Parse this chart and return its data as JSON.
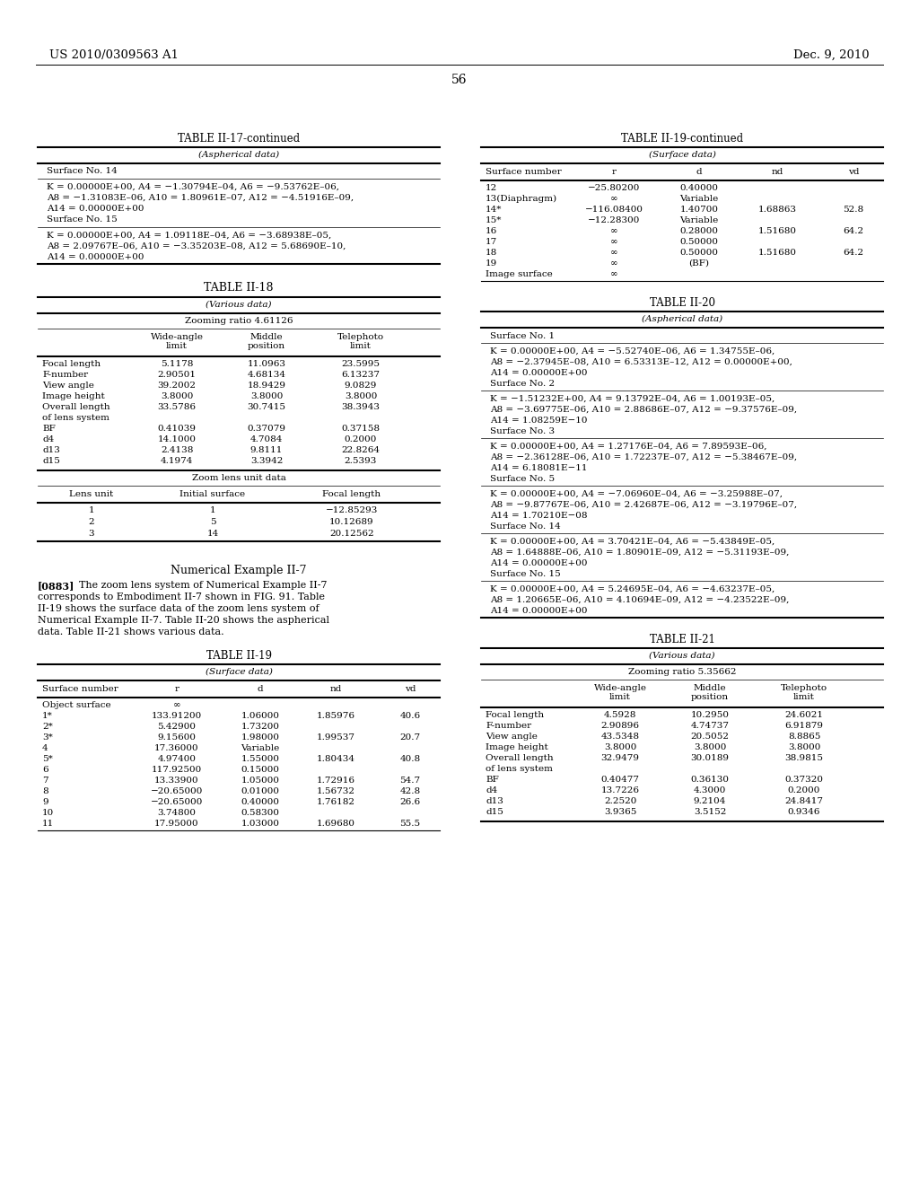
{
  "page_header_left": "US 2010/0309563 A1",
  "page_header_right": "Dec. 9, 2010",
  "page_number": "56",
  "table_ii17_title": "TABLE II-17-continued",
  "table_ii17_subtitle": "(Aspherical data)",
  "table_ii17_surface14": "Surface No. 14",
  "table_ii17_s14_lines": [
    "K = 0.00000E+00, A4 = −1.30794E–04, A6 = −9.53762E–06,",
    "A8 = −1.31083E–06, A10 = 1.80961E–07, A12 = −4.51916E–09,",
    "A14 = 0.00000E+00"
  ],
  "table_ii17_surface15": "Surface No. 15",
  "table_ii17_s15_lines": [
    "K = 0.00000E+00, A4 = 1.09118E–04, A6 = −3.68938E–05,",
    "A8 = 2.09767E–06, A10 = −3.35203E–08, A12 = 5.68690E–10,",
    "A14 = 0.00000E+00"
  ],
  "table_ii18_title": "TABLE II-18",
  "table_ii18_subtitle": "(Various data)",
  "table_ii18_zoom": "Zooming ratio 4.61126",
  "table_ii18_rows": [
    [
      "Focal length",
      "5.1178",
      "11.0963",
      "23.5995"
    ],
    [
      "F-number",
      "2.90501",
      "4.68134",
      "6.13237"
    ],
    [
      "View angle",
      "39.2002",
      "18.9429",
      "9.0829"
    ],
    [
      "Image height",
      "3.8000",
      "3.8000",
      "3.8000"
    ],
    [
      "Overall length",
      "33.5786",
      "30.7415",
      "38.3943"
    ],
    [
      "of lens system",
      "",
      "",
      ""
    ],
    [
      "BF",
      "0.41039",
      "0.37079",
      "0.37158"
    ],
    [
      "d4",
      "14.1000",
      "4.7084",
      "0.2000"
    ],
    [
      "d13",
      "2.4138",
      "9.8111",
      "22.8264"
    ],
    [
      "d15",
      "4.1974",
      "3.3942",
      "2.5393"
    ]
  ],
  "table_ii18_zoom2": "Zoom lens unit data",
  "table_ii18_rows2": [
    [
      "1",
      "1",
      "−12.85293"
    ],
    [
      "2",
      "5",
      "10.12689"
    ],
    [
      "3",
      "14",
      "20.12562"
    ]
  ],
  "numerical_example_title": "Numerical Example II-7",
  "numerical_example_lines": [
    "[0883]  The zoom lens system of Numerical Example II-7",
    "corresponds to Embodiment II-7 shown in FIG. 91. Table",
    "II-19 shows the surface data of the zoom lens system of",
    "Numerical Example II-7. Table II-20 shows the aspherical",
    "data. Table II-21 shows various data."
  ],
  "table_ii19_title": "TABLE II-19",
  "table_ii19_subtitle": "(Surface data)",
  "table_ii19_rows": [
    [
      "Object surface",
      "∞",
      "",
      "",
      ""
    ],
    [
      "1*",
      "133.91200",
      "1.06000",
      "1.85976",
      "40.6"
    ],
    [
      "2*",
      "5.42900",
      "1.73200",
      "",
      ""
    ],
    [
      "3*",
      "9.15600",
      "1.98000",
      "1.99537",
      "20.7"
    ],
    [
      "4",
      "17.36000",
      "Variable",
      "",
      ""
    ],
    [
      "5*",
      "4.97400",
      "1.55000",
      "1.80434",
      "40.8"
    ],
    [
      "6",
      "117.92500",
      "0.15000",
      "",
      ""
    ],
    [
      "7",
      "13.33900",
      "1.05000",
      "1.72916",
      "54.7"
    ],
    [
      "8",
      "−20.65000",
      "0.01000",
      "1.56732",
      "42.8"
    ],
    [
      "9",
      "−20.65000",
      "0.40000",
      "1.76182",
      "26.6"
    ],
    [
      "10",
      "3.74800",
      "0.58300",
      "",
      ""
    ],
    [
      "11",
      "17.95000",
      "1.03000",
      "1.69680",
      "55.5"
    ]
  ],
  "table_ii19c_title": "TABLE II-19-continued",
  "table_ii19c_subtitle": "(Surface data)",
  "table_ii19c_rows": [
    [
      "12",
      "−25.80200",
      "0.40000",
      "",
      ""
    ],
    [
      "13(Diaphragm)",
      "∞",
      "Variable",
      "",
      ""
    ],
    [
      "14*",
      "−116.08400",
      "1.40700",
      "1.68863",
      "52.8"
    ],
    [
      "15*",
      "−12.28300",
      "Variable",
      "",
      ""
    ],
    [
      "16",
      "∞",
      "0.28000",
      "1.51680",
      "64.2"
    ],
    [
      "17",
      "∞",
      "0.50000",
      "",
      ""
    ],
    [
      "18",
      "∞",
      "0.50000",
      "1.51680",
      "64.2"
    ],
    [
      "19",
      "∞",
      "(BF)",
      "",
      ""
    ],
    [
      "Image surface",
      "∞",
      "",
      "",
      ""
    ]
  ],
  "table_ii20_title": "TABLE II-20",
  "table_ii20_subtitle": "(Aspherical data)",
  "table_ii20_sections": [
    {
      "header": "Surface No. 1",
      "lines": [
        "K = 0.00000E+00, A4 = −5.52740E–06, A6 = 1.34755E–06,",
        "A8 = −2.37945E–08, A10 = 6.53313E–12, A12 = 0.00000E+00,",
        "A14 = 0.00000E+00"
      ]
    },
    {
      "header": "Surface No. 2",
      "lines": [
        "K = −1.51232E+00, A4 = 9.13792E–04, A6 = 1.00193E–05,",
        "A8 = −3.69775E–06, A10 = 2.88686E–07, A12 = −9.37576E–09,",
        "A14 = 1.08259E−10"
      ]
    },
    {
      "header": "Surface No. 3",
      "lines": [
        "K = 0.00000E+00, A4 = 1.27176E–04, A6 = 7.89593E–06,",
        "A8 = −2.36128E–06, A10 = 1.72237E–07, A12 = −5.38467E–09,",
        "A14 = 6.18081E−11"
      ]
    },
    {
      "header": "Surface No. 5",
      "lines": [
        "K = 0.00000E+00, A4 = −7.06960E–04, A6 = −3.25988E–07,",
        "A8 = −9.87767E–06, A10 = 2.42687E–06, A12 = −3.19796E–07,",
        "A14 = 1.70210E−08"
      ]
    },
    {
      "header": "Surface No. 14",
      "lines": [
        "K = 0.00000E+00, A4 = 3.70421E–04, A6 = −5.43849E–05,",
        "A8 = 1.64888E–06, A10 = 1.80901E–09, A12 = −5.31193E–09,",
        "A14 = 0.00000E+00"
      ]
    },
    {
      "header": "Surface No. 15",
      "lines": [
        "K = 0.00000E+00, A4 = 5.24695E–04, A6 = −4.63237E–05,",
        "A8 = 1.20665E–06, A10 = 4.10694E–09, A12 = −4.23522E–09,",
        "A14 = 0.00000E+00"
      ]
    }
  ],
  "table_ii21_title": "TABLE II-21",
  "table_ii21_subtitle": "(Various data)",
  "table_ii21_zoom": "Zooming ratio 5.35662",
  "table_ii21_rows": [
    [
      "Focal length",
      "4.5928",
      "10.2950",
      "24.6021"
    ],
    [
      "F-number",
      "2.90896",
      "4.74737",
      "6.91879"
    ],
    [
      "View angle",
      "43.5348",
      "20.5052",
      "8.8865"
    ],
    [
      "Image height",
      "3.8000",
      "3.8000",
      "3.8000"
    ],
    [
      "Overall length",
      "32.9479",
      "30.0189",
      "38.9815"
    ],
    [
      "of lens system",
      "",
      "",
      ""
    ],
    [
      "BF",
      "0.40477",
      "0.36130",
      "0.37320"
    ],
    [
      "d4",
      "13.7226",
      "4.3000",
      "0.2000"
    ],
    [
      "d13",
      "2.2520",
      "9.2104",
      "24.8417"
    ],
    [
      "d15",
      "3.9365",
      "3.5152",
      "0.9346"
    ]
  ]
}
